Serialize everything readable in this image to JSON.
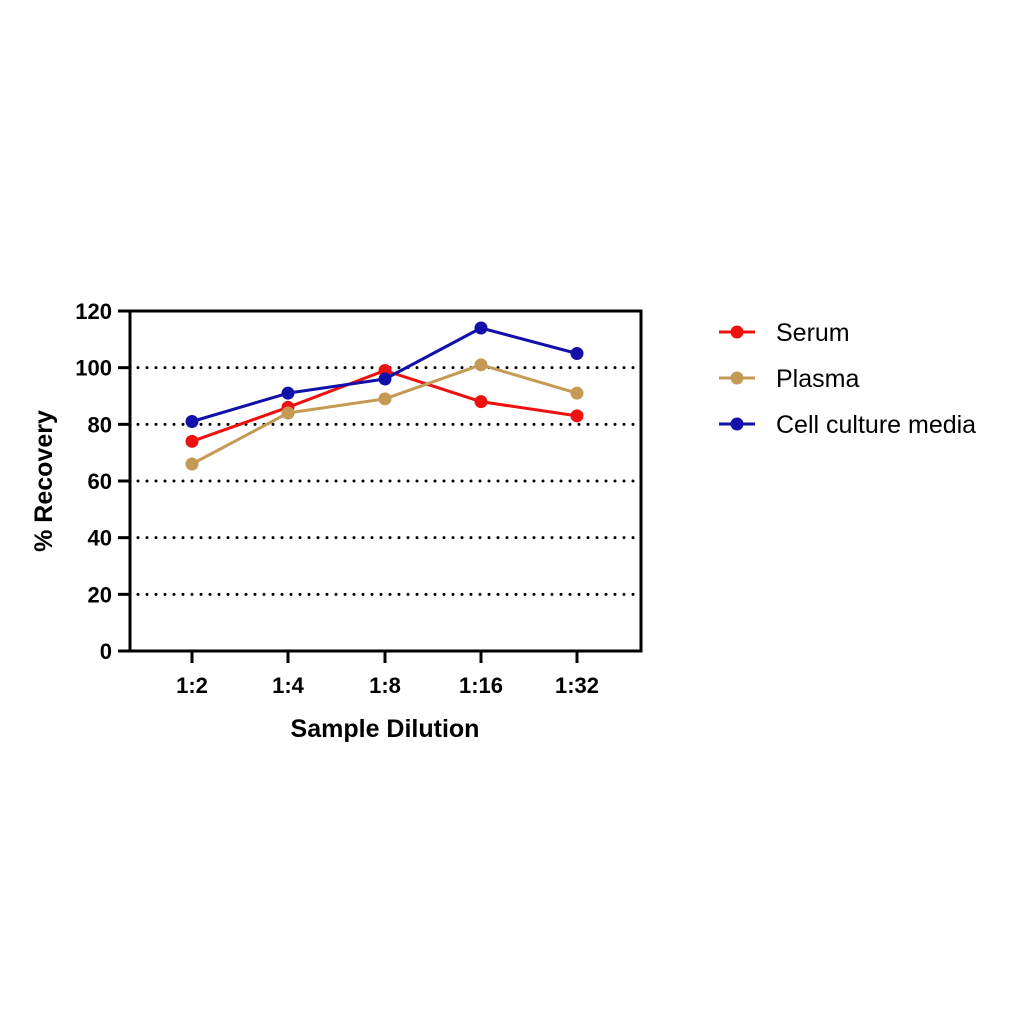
{
  "chart_data": {
    "type": "line",
    "title": "",
    "xlabel": "Sample Dilution",
    "ylabel": "% Recovery",
    "categories": [
      "1:2",
      "1:4",
      "1:8",
      "1:16",
      "1:32"
    ],
    "ylim": [
      0,
      120
    ],
    "yticks": [
      0,
      20,
      40,
      60,
      80,
      100,
      120
    ],
    "ytick_labels": [
      "0",
      "20",
      "40",
      "60",
      "80",
      "100",
      "120"
    ],
    "grid": "horizontal dotted",
    "legend_position": "right",
    "series": [
      {
        "name": "Serum",
        "color": "#ee1111",
        "values": [
          74,
          86,
          99,
          88,
          83
        ]
      },
      {
        "name": "Plasma",
        "color": "#c49a55",
        "values": [
          66,
          84,
          89,
          101,
          91
        ]
      },
      {
        "name": "Cell culture media",
        "color": "#1111aa",
        "values": [
          81,
          91,
          96,
          114,
          105
        ]
      }
    ]
  }
}
